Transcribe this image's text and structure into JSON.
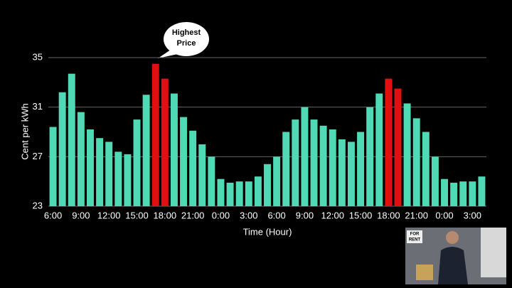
{
  "chart_data": {
    "type": "bar",
    "annotation": {
      "lines": [
        "Highest",
        "Price"
      ]
    },
    "x_label": "Time (Hour)",
    "y_label": "Cent per kWh",
    "categories": [
      "6:00",
      null,
      null,
      "9:00",
      null,
      null,
      "12:00",
      null,
      null,
      "15:00",
      null,
      null,
      "18:00",
      null,
      null,
      "21:00",
      null,
      null,
      "0:00",
      null,
      null,
      "3:00",
      null,
      null,
      "6:00",
      null,
      null,
      "9:00",
      null,
      null,
      "12:00",
      null,
      null,
      "15:00",
      null,
      null,
      "18:00",
      null,
      null,
      "21:00",
      null,
      null,
      "0:00",
      null,
      null,
      "3:00",
      null
    ],
    "values": [
      29.4,
      32.2,
      33.7,
      30.6,
      29.2,
      28.5,
      28.2,
      27.4,
      27.2,
      30.0,
      32.0,
      34.5,
      33.3,
      32.1,
      30.2,
      29.1,
      28.0,
      27.0,
      25.2,
      24.9,
      25.0,
      25.0,
      25.4,
      26.4,
      27.0,
      29.0,
      30.0,
      31.0,
      30.0,
      29.5,
      29.2,
      28.4,
      28.2,
      29.0,
      31.0,
      32.1,
      33.3,
      32.5,
      31.3,
      30.1,
      29.0,
      27.0,
      25.2,
      24.9,
      25.0,
      25.0,
      25.4
    ],
    "color": "#4fd9b4",
    "highlight_color": "#e01010",
    "highlight_indices": [
      11,
      12,
      36,
      37
    ],
    "ylim": [
      23,
      35
    ],
    "yticks": [
      23,
      27,
      31,
      35
    ],
    "grid": true,
    "inset_sign": [
      "FOR",
      "RENT"
    ]
  }
}
